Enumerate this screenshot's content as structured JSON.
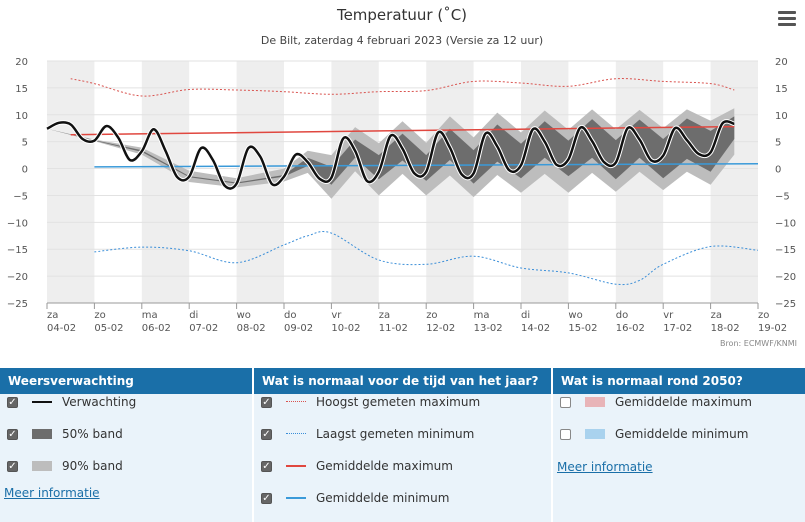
{
  "colors": {
    "forecast": "#111111",
    "band50": "#6d6d6d",
    "band90": "#bdbdbd",
    "max_record": "#d9534f",
    "min_record": "#3a8ed8",
    "avg_max": "#e0473f",
    "avg_min": "#3a9ad9",
    "weekend_shade": "#eeeeee",
    "header_bg": "#1a6fa8",
    "panel_bg": "#eaf3fa",
    "future_max": "#e8b4b8",
    "future_min": "#a9d2ee"
  },
  "chart_data": {
    "type": "line",
    "title": "Temperatuur (˚C)",
    "subtitle": "De Bilt, zaterdag 4 februari 2023 (Versie za 12 uur)",
    "source": "Bron: ECMWF/KNMI",
    "ylim": [
      -25,
      20
    ],
    "yticks": [
      "20",
      "15",
      "10",
      "5",
      "0",
      "−5",
      "−10",
      "−15",
      "−20",
      "−25"
    ],
    "ytick_values": [
      20,
      15,
      10,
      5,
      0,
      -5,
      -10,
      -15,
      -20,
      -25
    ],
    "xlim": [
      0,
      15
    ],
    "x_day_labels": [
      "za",
      "zo",
      "ma",
      "di",
      "wo",
      "do",
      "vr",
      "za",
      "zo",
      "ma",
      "di",
      "wo",
      "do",
      "vr",
      "za",
      "zo"
    ],
    "x_date_labels": [
      "04-02",
      "05-02",
      "06-02",
      "07-02",
      "08-02",
      "09-02",
      "10-02",
      "11-02",
      "12-02",
      "13-02",
      "14-02",
      "15-02",
      "16-02",
      "17-02",
      "18-02",
      "19-02"
    ],
    "shaded_days": [
      0,
      2,
      4,
      6,
      8,
      10,
      12,
      14
    ],
    "series": [
      {
        "name": "Hoogst gemeten maximum",
        "style": "dotted",
        "x": [
          0.5,
          1,
          2,
          3,
          4,
          5,
          6,
          7,
          8,
          9,
          10,
          11,
          12,
          13,
          14,
          14.5
        ],
        "y": [
          16.7,
          15.8,
          13.5,
          14.7,
          14.6,
          14.3,
          13.8,
          14.3,
          14.5,
          16.2,
          15.9,
          15.3,
          16.7,
          16.2,
          15.8,
          14.6
        ]
      },
      {
        "name": "Laagst gemeten minimum",
        "style": "dotted",
        "x": [
          1,
          2,
          3,
          4,
          5,
          5.5,
          6,
          7,
          8,
          9,
          10,
          11,
          12,
          12.5,
          13,
          14,
          15
        ],
        "y": [
          -15.5,
          -14.6,
          -15.3,
          -17.5,
          -14.2,
          -12.5,
          -12.0,
          -17.0,
          -17.8,
          -16.3,
          -18.5,
          -19.4,
          -21.5,
          -20.8,
          -17.8,
          -14.5,
          -15.2
        ]
      },
      {
        "name": "Gemiddelde maximum",
        "style": "solid",
        "x": [
          0.5,
          14.5
        ],
        "y": [
          6.3,
          7.8
        ]
      },
      {
        "name": "Gemiddelde minimum",
        "style": "solid",
        "x": [
          1,
          15
        ],
        "y": [
          0.3,
          0.9
        ]
      },
      {
        "name": "Verwachting",
        "style": "thick",
        "x": [
          0,
          0.25,
          0.5,
          0.75,
          1,
          1.25,
          1.5,
          1.75,
          2,
          2.25,
          2.5,
          2.75,
          3,
          3.25,
          3.5,
          3.75,
          4,
          4.25,
          4.5,
          4.75,
          5,
          5.25,
          5.5,
          5.75,
          6,
          6.25,
          6.5,
          6.75,
          7,
          7.25,
          7.5,
          7.75,
          8,
          8.25,
          8.5,
          8.75,
          9,
          9.25,
          9.5,
          9.75,
          10,
          10.25,
          10.5,
          10.75,
          11,
          11.25,
          11.5,
          11.75,
          12,
          12.25,
          12.5,
          12.75,
          13,
          13.25,
          13.5,
          13.75,
          14,
          14.25,
          14.5
        ],
        "y": [
          7.4,
          8.5,
          8.2,
          5.5,
          5.2,
          7.9,
          5.8,
          1.6,
          3.2,
          7.3,
          3.3,
          -1.6,
          -1.5,
          3.8,
          1.6,
          -3.2,
          -2.8,
          3.8,
          2.2,
          -2.9,
          -1.5,
          2.6,
          1.2,
          -1.9,
          -1.7,
          5.6,
          3.3,
          -2.3,
          -0.6,
          6.1,
          3.7,
          -0.9,
          -0.6,
          6.7,
          3.9,
          -1.1,
          -0.9,
          6.5,
          4.1,
          -0.3,
          0.6,
          7.3,
          5.0,
          0.7,
          1.7,
          7.6,
          5.1,
          1.2,
          1.1,
          7.5,
          5.4,
          1.5,
          2.4,
          7.5,
          5.3,
          2.7,
          3.0,
          8.4,
          8.3
        ]
      },
      {
        "name": "50% band",
        "style": "band",
        "x": [
          0,
          1,
          2,
          3,
          4,
          5,
          5.5,
          6,
          6.5,
          7,
          7.5,
          8,
          8.5,
          9,
          9.5,
          10,
          10.5,
          11,
          11.5,
          12,
          12.5,
          13,
          13.5,
          14,
          14.5
        ],
        "low": [
          7.4,
          5.2,
          3.1,
          -1.6,
          -2.8,
          -1.5,
          0.5,
          -3.0,
          2.0,
          -2.0,
          1.5,
          -2.3,
          1.6,
          -2.8,
          1.3,
          -1.8,
          2.0,
          -1.4,
          2.0,
          -2.0,
          2.0,
          -1.8,
          1.8,
          -0.6,
          5.5
        ],
        "high": [
          7.4,
          5.3,
          3.4,
          -1.4,
          -2.6,
          -1.2,
          2.0,
          0.3,
          5.4,
          2.5,
          6.5,
          2.5,
          7.4,
          3.4,
          8.2,
          4.6,
          8.8,
          5.2,
          9.2,
          5.3,
          9.1,
          5.5,
          9.3,
          7.0,
          9.7
        ]
      },
      {
        "name": "90% band",
        "style": "band",
        "x": [
          0,
          1,
          2,
          3,
          4,
          5,
          5.5,
          6,
          6.5,
          7,
          7.5,
          8,
          8.5,
          9,
          9.5,
          10,
          10.5,
          11,
          11.5,
          12,
          12.5,
          13,
          13.5,
          14,
          14.5
        ],
        "low": [
          7.4,
          5.1,
          2.6,
          -2.5,
          -3.5,
          -2.4,
          -0.8,
          -5.6,
          -0.5,
          -5.0,
          -1.0,
          -5.0,
          -1.3,
          -5.3,
          -1.2,
          -4.5,
          -1.0,
          -4.5,
          -0.8,
          -4.3,
          -0.6,
          -4.0,
          -0.6,
          -3.0,
          2.6
        ],
        "high": [
          7.4,
          5.4,
          3.9,
          -0.4,
          -1.8,
          0.0,
          3.3,
          2.5,
          7.7,
          4.7,
          8.8,
          4.8,
          9.7,
          5.8,
          10.4,
          6.7,
          10.8,
          7.2,
          11.0,
          7.3,
          10.9,
          7.5,
          11.0,
          8.9,
          11.2
        ]
      }
    ]
  },
  "panels": [
    {
      "header": "Weersverwachting",
      "items": [
        {
          "label": "Verwachting",
          "checked": true,
          "symbol": "solid-thick",
          "color": "#111111"
        },
        {
          "label": "50% band",
          "checked": true,
          "symbol": "swatch",
          "color": "#6d6d6d"
        },
        {
          "label": "90% band",
          "checked": true,
          "symbol": "swatch",
          "color": "#bdbdbd"
        }
      ],
      "link": "Meer informatie"
    },
    {
      "header": "Wat is normaal voor de tijd van het jaar?",
      "items": [
        {
          "label": "Hoogst gemeten maximum",
          "checked": true,
          "symbol": "dotted",
          "color": "#d9534f"
        },
        {
          "label": "Laagst gemeten minimum",
          "checked": true,
          "symbol": "dotted",
          "color": "#3a8ed8"
        },
        {
          "label": "Gemiddelde maximum",
          "checked": true,
          "symbol": "solid",
          "color": "#e0473f"
        },
        {
          "label": "Gemiddelde minimum",
          "checked": true,
          "symbol": "solid",
          "color": "#3a9ad9"
        }
      ]
    },
    {
      "header": "Wat is normaal rond 2050?",
      "items": [
        {
          "label": "Gemiddelde maximum",
          "checked": false,
          "symbol": "swatch",
          "color": "#e8b4b8"
        },
        {
          "label": "Gemiddelde minimum",
          "checked": false,
          "symbol": "swatch",
          "color": "#a9d2ee"
        }
      ],
      "link": "Meer informatie"
    }
  ]
}
